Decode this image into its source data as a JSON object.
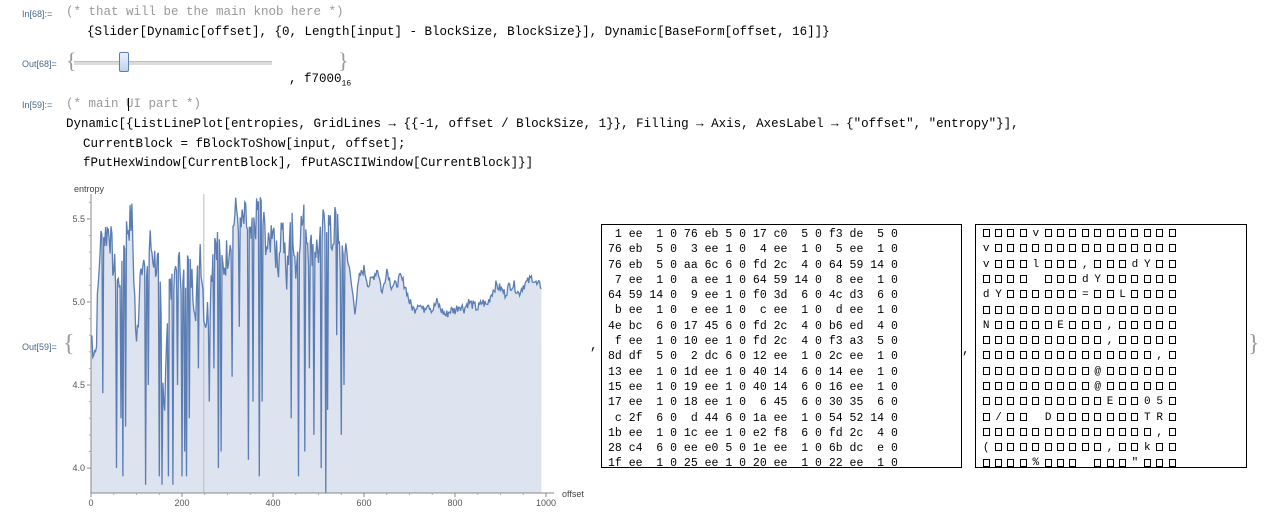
{
  "cells": {
    "in68_label": "In[68]:=",
    "in68_comment": "(* that will be the main knob here *)",
    "in68_code": "{Slider[Dynamic[offset], {0, Length[input] - BlockSize, BlockSize}], Dynamic[BaseForm[offset, 16]]}",
    "out68_label": "Out[68]=",
    "out68_value_text": ", f7000",
    "out68_base": "16",
    "in59_label": "In[59]:=",
    "in59_comment": "(* main UI part *)",
    "in59_line1": "Dynamic[{ListLinePlot[entropies, GridLines → {{-1, offset / BlockSize, 1}}, Filling → Axis, AxesLabel → {\"offset\", \"entropy\"}],",
    "in59_line2": "CurrentBlock = fBlockToShow[input, offset];",
    "in59_line3": "fPutHexWindow[CurrentBlock], fPutASCIIWindow[CurrentBlock]}]",
    "out59_label": "Out[59]=",
    "separator_comma": ","
  },
  "slider": {
    "min": 0,
    "value_fraction": 0.2
  },
  "chart_data": {
    "type": "area",
    "xlabel": "offset",
    "ylabel": "entropy",
    "xlim": [
      0,
      1000
    ],
    "ylim": [
      3.85,
      5.65
    ],
    "x_ticks": [
      "0",
      "200",
      "400",
      "600",
      "800",
      "1000"
    ],
    "y_ticks": [
      "4.0",
      "4.5",
      "5.0",
      "5.5"
    ],
    "gridline_x": 248,
    "series": [
      {
        "values_sampled_every_10": [
          4.8,
          4.7,
          5.35,
          5.4,
          5.45,
          5.2,
          5.1,
          5.3,
          5.45,
          5.5,
          4.7,
          5.3,
          5.15,
          5.35,
          5.25,
          5.2,
          4.3,
          5.1,
          5.05,
          5.35,
          5.0,
          5.25,
          5.15,
          5.0,
          5.35,
          4.9,
          4.95,
          5.4,
          5.35,
          5.2,
          5.3,
          5.45,
          5.55,
          5.45,
          5.5,
          5.35,
          5.45,
          5.6,
          5.45,
          5.3,
          5.5,
          5.2,
          5.5,
          5.1,
          5.6,
          5.2,
          5.45,
          5.5,
          5.3,
          5.35,
          5.3,
          5.45,
          5.5,
          5.35,
          5.55,
          5.2,
          5.35,
          5.15,
          4.95,
          5.15,
          5.2,
          5.1,
          5.15,
          5.2,
          5.05,
          5.2,
          5.1,
          5.1,
          5.15,
          5.1,
          5.0,
          4.95,
          5.0,
          4.95,
          5.0,
          4.95,
          5.0,
          4.95,
          4.92,
          4.95,
          4.95,
          4.98,
          4.96,
          5.0,
          4.98,
          4.96,
          5.0,
          4.98,
          5.05,
          5.1,
          5.08,
          5.05,
          5.1,
          5.1,
          5.05,
          5.1,
          5.12,
          5.15,
          5.1
        ]
      }
    ],
    "dips": [
      {
        "x": 25,
        "y": 4.45
      },
      {
        "x": 55,
        "y": 4.0
      },
      {
        "x": 65,
        "y": 4.3
      },
      {
        "x": 70,
        "y": 3.95
      },
      {
        "x": 75,
        "y": 4.25
      },
      {
        "x": 120,
        "y": 3.9
      },
      {
        "x": 125,
        "y": 4.5
      },
      {
        "x": 150,
        "y": 3.95
      },
      {
        "x": 155,
        "y": 3.9
      },
      {
        "x": 160,
        "y": 4.4
      },
      {
        "x": 170,
        "y": 3.95
      },
      {
        "x": 180,
        "y": 3.9
      },
      {
        "x": 190,
        "y": 4.5
      },
      {
        "x": 200,
        "y": 3.95
      },
      {
        "x": 205,
        "y": 4.1
      },
      {
        "x": 210,
        "y": 3.95
      },
      {
        "x": 215,
        "y": 4.3
      },
      {
        "x": 235,
        "y": 4.6
      },
      {
        "x": 260,
        "y": 4.4
      },
      {
        "x": 270,
        "y": 4.6
      },
      {
        "x": 280,
        "y": 4.0
      },
      {
        "x": 285,
        "y": 4.1
      },
      {
        "x": 310,
        "y": 4.55
      },
      {
        "x": 325,
        "y": 4.85
      },
      {
        "x": 345,
        "y": 4.05
      },
      {
        "x": 355,
        "y": 4.4
      },
      {
        "x": 370,
        "y": 3.95
      },
      {
        "x": 375,
        "y": 4.4
      },
      {
        "x": 440,
        "y": 4.3
      },
      {
        "x": 455,
        "y": 3.95
      },
      {
        "x": 470,
        "y": 4.1
      },
      {
        "x": 480,
        "y": 4.6
      },
      {
        "x": 490,
        "y": 4.2
      },
      {
        "x": 505,
        "y": 4.0
      },
      {
        "x": 515,
        "y": 3.85
      },
      {
        "x": 520,
        "y": 4.35
      },
      {
        "x": 540,
        "y": 4.8
      },
      {
        "x": 550,
        "y": 4.2
      },
      {
        "x": 555,
        "y": 4.5
      }
    ]
  },
  "hex_window": {
    "rows": [
      " 1 ee  1 0 76 eb 5 0 17 c0  5 0 f3 de  5 0",
      "76 eb  5 0  3 ee 1 0  4 ee  1 0  5 ee  1 0",
      "76 eb  5 0 aa 6c 6 0 fd 2c  4 0 64 59 14 0",
      " 7 ee  1 0  a ee 1 0 64 59 14 0  8 ee  1 0",
      "64 59 14 0  9 ee 1 0 f0 3d  6 0 4c d3  6 0",
      " b ee  1 0  e ee 1 0  c ee  1 0  d ee  1 0",
      "4e bc  6 0 17 45 6 0 fd 2c  4 0 b6 ed  4 0",
      " f ee  1 0 10 ee 1 0 fd 2c  4 0 f3 a3  5 0",
      "8d df  5 0  2 dc 6 0 12 ee  1 0 2c ee  1 0",
      "13 ee  1 0 1d ee 1 0 40 14  6 0 14 ee  1 0",
      "15 ee  1 0 19 ee 1 0 40 14  6 0 16 ee  1 0",
      "17 ee  1 0 18 ee 1 0  6 45  6 0 30 35  6 0",
      " c 2f  6 0  d 44 6 0 1a ee  1 0 54 52 14 0",
      "1b ee  1 0 1c ee 1 0 e2 f8  6 0 fd 2c  4 0",
      "28 c4  6 0 ee e0 5 0 1e ee  1 0 6b dc  e 0",
      "1f ee  1 0 25 ee 1 0 20 ee  1 0 22 ee  1 0"
    ]
  },
  "ascii_window": {
    "rows": [
      "####v###########",
      "v###############",
      "v###l###,###dY##",
      "#### ###dY######",
      "dY######=##L####",
      "################",
      "N#####E###,#####",
      "##########,#####",
      "##############,#",
      "#########@######",
      "#########@######",
      "##########E##05#",
      "#/## D#######TR#",
      "##############,#",
      "(#########,##k##",
      "####%### ###\"###"
    ]
  }
}
